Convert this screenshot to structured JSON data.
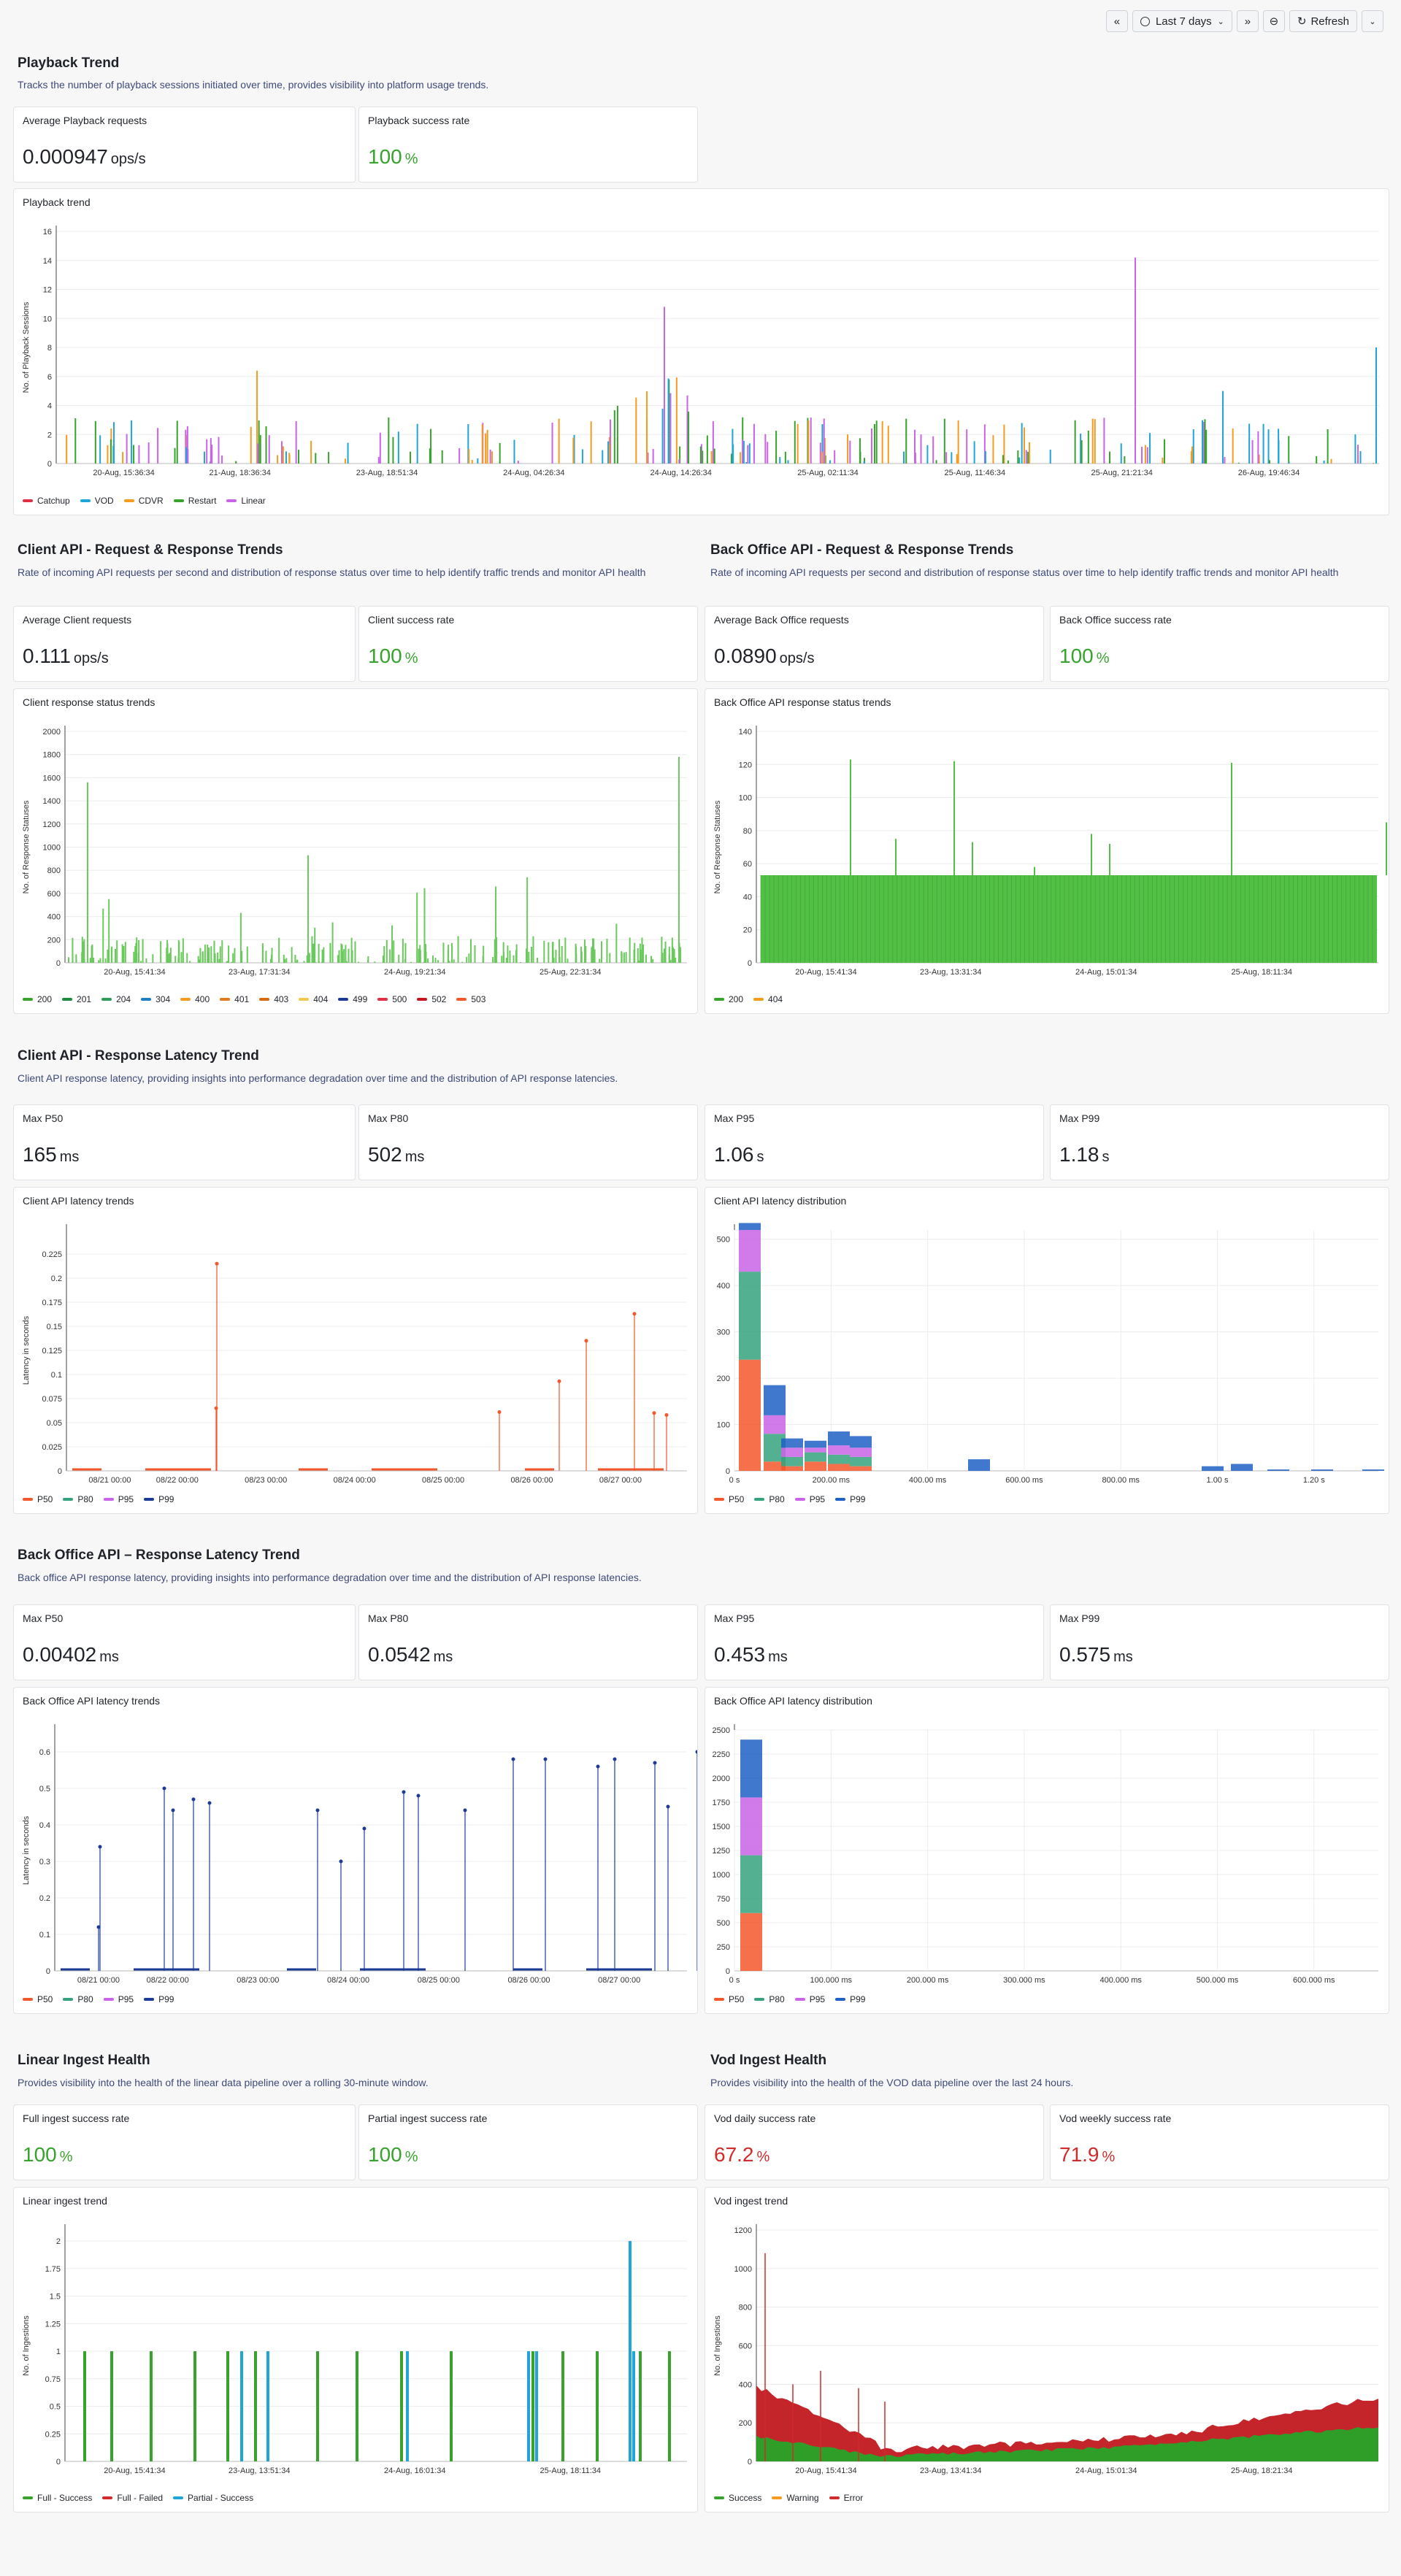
{
  "toolbar": {
    "time_range": "Last 7 days",
    "refresh_label": "Refresh"
  },
  "playback": {
    "title": "Playback Trend",
    "description": "Tracks the number of playback sessions initiated over time, provides visibility into platform usage trends.",
    "avg_label": "Average Playback requests",
    "avg_value": "0.000947",
    "avg_unit": "ops/s",
    "success_label": "Playback success rate",
    "success_value": "100",
    "success_unit": "%"
  },
  "client_api": {
    "title": "Client API - Request & Response Trends",
    "description": "Rate of incoming API requests per second and distribution of response status over time to help identify traffic trends and monitor API health",
    "avg_label": "Average Client requests",
    "avg_value": "0.111",
    "avg_unit": "ops/s",
    "success_label": "Client success rate",
    "success_value": "100",
    "success_unit": "%"
  },
  "backoffice_api": {
    "title": "Back Office API - Request & Response Trends",
    "description": "Rate of incoming API requests per second and distribution of response status over time to help identify traffic trends and monitor API health",
    "avg_label": "Average Back Office requests",
    "avg_value": "0.0890",
    "avg_unit": "ops/s",
    "success_label": "Back Office success rate",
    "success_value": "100",
    "success_unit": "%"
  },
  "client_latency": {
    "title": "Client API - Response Latency Trend",
    "description": "Client API response latency, providing insights into performance degradation over time and the distribution of API response latencies.",
    "p50_label": "Max P50",
    "p50_value": "165",
    "p50_unit": "ms",
    "p80_label": "Max P80",
    "p80_value": "502",
    "p80_unit": "ms",
    "p95_label": "Max P95",
    "p95_value": "1.06",
    "p95_unit": "s",
    "p99_label": "Max P99",
    "p99_value": "1.18",
    "p99_unit": "s"
  },
  "bo_latency": {
    "title": "Back Office API – Response Latency Trend",
    "description": "Back office API response latency, providing insights into performance degradation over time and the distribution of API response latencies.",
    "p50_label": "Max P50",
    "p50_value": "0.00402",
    "p50_unit": "ms",
    "p80_label": "Max P80",
    "p80_value": "0.0542",
    "p80_unit": "ms",
    "p95_label": "Max P95",
    "p95_value": "0.453",
    "p95_unit": "ms",
    "p99_label": "Max P99",
    "p99_value": "0.575",
    "p99_unit": "ms"
  },
  "linear_ingest": {
    "title": "Linear Ingest Health",
    "description": "Provides visibility into the health of the linear data pipeline over a rolling 30-minute window.",
    "full_label": "Full ingest success rate",
    "full_value": "100",
    "full_unit": "%",
    "partial_label": "Partial ingest success rate",
    "partial_value": "100",
    "partial_unit": "%"
  },
  "vod_ingest": {
    "title": "Vod Ingest Health",
    "description": "Provides visibility into the health of the VOD data pipeline over the last 24 hours.",
    "daily_label": "Vod daily success rate",
    "daily_value": "67.2",
    "daily_unit": "%",
    "weekly_label": "Vod weekly success rate",
    "weekly_value": "71.9",
    "weekly_unit": "%"
  },
  "colors": {
    "green": "#37a32c",
    "red": "#d12b2b",
    "orange_red": "#f4572b",
    "blue": "#1f60c4",
    "cyan": "#1fa5d6",
    "purple": "#c964e8",
    "orange": "#f59b1f",
    "teal": "#35a27c",
    "dark_blue": "#1c3b96"
  },
  "chart_data": [
    {
      "id": "playback",
      "type": "bar",
      "title": "Playback trend",
      "ylabel": "No. of Playback Sessions",
      "ylim": [
        0,
        16
      ],
      "yticks": [
        "0",
        "2",
        "4",
        "6",
        "8",
        "10",
        "12",
        "14",
        "16"
      ],
      "xticks": [
        "20-Aug, 15:36:34",
        "21-Aug, 18:36:34",
        "23-Aug, 18:51:34",
        "24-Aug, 04:26:34",
        "24-Aug, 14:26:34",
        "25-Aug, 02:11:34",
        "25-Aug, 11:46:34",
        "25-Aug, 21:21:34",
        "26-Aug, 19:46:34"
      ],
      "legend": [
        "Catchup",
        "VOD",
        "CDVR",
        "Restart",
        "Linear"
      ],
      "legend_colors": [
        "#e02f44",
        "#1fa5d6",
        "#f59b1f",
        "#37a32c",
        "#c964e8"
      ]
    },
    {
      "id": "client_status",
      "type": "bar",
      "title": "Client response status trends",
      "ylabel": "No. of Response Statuses",
      "ylim": [
        0,
        2000
      ],
      "yticks": [
        "0",
        "200",
        "400",
        "600",
        "800",
        "1000",
        "1200",
        "1400",
        "1600",
        "1800",
        "2000"
      ],
      "xticks": [
        "20-Aug, 15:41:34",
        "23-Aug, 17:31:34",
        "24-Aug, 19:21:34",
        "25-Aug, 22:31:34"
      ],
      "legend": [
        "200",
        "201",
        "204",
        "304",
        "400",
        "401",
        "403",
        "404",
        "499",
        "500",
        "502",
        "503"
      ],
      "legend_colors": [
        "#37a32c",
        "#1f8a3c",
        "#2f9e5a",
        "#1f7fc4",
        "#f59b1f",
        "#e07b1f",
        "#d86a10",
        "#f2c94c",
        "#1c3b96",
        "#e02f44",
        "#c4161c",
        "#f4572b"
      ]
    },
    {
      "id": "bo_status",
      "type": "bar",
      "title": "Back Office API response status trends",
      "ylabel": "No. of Response Statuses",
      "ylim": [
        0,
        140
      ],
      "yticks": [
        "0",
        "20",
        "40",
        "60",
        "80",
        "100",
        "120",
        "140"
      ],
      "xticks": [
        "20-Aug, 15:41:34",
        "23-Aug, 13:31:34",
        "24-Aug, 15:01:34",
        "25-Aug, 18:11:34"
      ],
      "legend": [
        "200",
        "404"
      ],
      "legend_colors": [
        "#37a32c",
        "#f59b1f"
      ]
    },
    {
      "id": "client_latency_trend",
      "type": "line",
      "title": "Client API latency trends",
      "ylabel": "Latency in seconds",
      "ylim": [
        0,
        0.25
      ],
      "yticks": [
        "0",
        "0.025",
        "0.05",
        "0.075",
        "0.1",
        "0.125",
        "0.15",
        "0.175",
        "0.2",
        "0.225"
      ],
      "xticks": [
        "08/21 00:00",
        "08/22 00:00",
        "08/23 00:00",
        "08/24 00:00",
        "08/25 00:00",
        "08/26 00:00",
        "08/27 00:00"
      ],
      "legend": [
        "P50",
        "P80",
        "P95",
        "P99"
      ],
      "legend_colors": [
        "#f4572b",
        "#35a27c",
        "#c964e8",
        "#1c3b96"
      ]
    },
    {
      "id": "client_latency_dist",
      "type": "bar",
      "title": "Client API latency distribution",
      "ylim": [
        0,
        520
      ],
      "yticks": [
        "0",
        "100",
        "200",
        "300",
        "400",
        "500"
      ],
      "xticks": [
        "0 s",
        "200.00 ms",
        "400.00 ms",
        "600.00 ms",
        "800.00 ms",
        "1.00 s",
        "1.20 s"
      ],
      "legend": [
        "P50",
        "P80",
        "P95",
        "P99"
      ],
      "legend_colors": [
        "#f4572b",
        "#35a27c",
        "#c964e8",
        "#1f60c4"
      ]
    },
    {
      "id": "bo_latency_trend",
      "type": "line",
      "title": "Back Office API latency trends",
      "ylabel": "Latency in seconds",
      "ylim": [
        0,
        0.66
      ],
      "yticks": [
        "0",
        "0.1",
        "0.2",
        "0.3",
        "0.4",
        "0.5",
        "0.6"
      ],
      "xticks": [
        "08/21 00:00",
        "08/22 00:00",
        "08/23 00:00",
        "08/24 00:00",
        "08/25 00:00",
        "08/26 00:00",
        "08/27 00:00"
      ],
      "legend": [
        "P50",
        "P80",
        "P95",
        "P99"
      ],
      "legend_colors": [
        "#f4572b",
        "#35a27c",
        "#c964e8",
        "#1c3b96"
      ]
    },
    {
      "id": "bo_latency_dist",
      "type": "bar",
      "title": "Back Office API latency distribution",
      "ylim": [
        0,
        2500
      ],
      "yticks": [
        "0",
        "250",
        "500",
        "750",
        "1000",
        "1250",
        "1500",
        "1750",
        "2000",
        "2250",
        "2500"
      ],
      "xticks": [
        "0 s",
        "100.000 ms",
        "200.000 ms",
        "300.000 ms",
        "400.000 ms",
        "500.000 ms",
        "600.000 ms"
      ],
      "legend": [
        "P50",
        "P80",
        "P95",
        "P99"
      ],
      "legend_colors": [
        "#f4572b",
        "#35a27c",
        "#c964e8",
        "#1f60c4"
      ]
    },
    {
      "id": "linear_trend",
      "type": "bar",
      "title": "Linear ingest trend",
      "ylabel": "No. of Ingestions",
      "ylim": [
        0,
        2.1
      ],
      "yticks": [
        "0",
        "0.25",
        "0.5",
        "0.75",
        "1",
        "1.25",
        "1.5",
        "1.75",
        "2"
      ],
      "xticks": [
        "20-Aug, 15:41:34",
        "23-Aug, 13:51:34",
        "24-Aug, 16:01:34",
        "25-Aug, 18:11:34"
      ],
      "legend": [
        "Full - Success",
        "Full - Failed",
        "Partial - Success"
      ],
      "legend_colors": [
        "#37a32c",
        "#d12b2b",
        "#1fa5d6"
      ]
    },
    {
      "id": "vod_trend",
      "type": "area",
      "title": "Vod ingest trend",
      "ylabel": "No. of Ingestions",
      "ylim": [
        0,
        1200
      ],
      "yticks": [
        "0",
        "200",
        "400",
        "600",
        "800",
        "1000",
        "1200"
      ],
      "xticks": [
        "20-Aug, 15:41:34",
        "23-Aug, 13:41:34",
        "24-Aug, 15:01:34",
        "25-Aug, 18:21:34"
      ],
      "legend": [
        "Success",
        "Warning",
        "Error"
      ],
      "legend_colors": [
        "#37a32c",
        "#f59b1f",
        "#d12b2b"
      ]
    }
  ]
}
